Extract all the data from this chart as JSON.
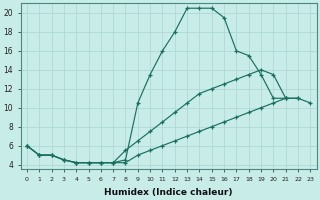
{
  "xlabel": "Humidex (Indice chaleur)",
  "bg_color": "#c8ece8",
  "grid_color": "#aad4d0",
  "line_color": "#1a7060",
  "xmin": -0.5,
  "xmax": 23.5,
  "ymin": 3.5,
  "ymax": 21.0,
  "yticks": [
    4,
    6,
    8,
    10,
    12,
    14,
    16,
    18,
    20
  ],
  "xticks": [
    0,
    1,
    2,
    3,
    4,
    5,
    6,
    7,
    8,
    9,
    10,
    11,
    12,
    13,
    14,
    15,
    16,
    17,
    18,
    19,
    20,
    21,
    22,
    23
  ],
  "line1_x": [
    0,
    1,
    2,
    3,
    4,
    5,
    6,
    7,
    8,
    9,
    10,
    11,
    12,
    13,
    14,
    15,
    16,
    17,
    18,
    19,
    20,
    21
  ],
  "line1_y": [
    6,
    5,
    5,
    4.5,
    4.2,
    4.2,
    4.2,
    4.2,
    4.5,
    10.5,
    13.5,
    16,
    18,
    20.5,
    20.5,
    20.5,
    19.5,
    16,
    15.5,
    13.5,
    11,
    11
  ],
  "line2_x": [
    0,
    1,
    2,
    3,
    4,
    5,
    6,
    7,
    8,
    9,
    10,
    11,
    12,
    13,
    14,
    15,
    16,
    17,
    18,
    19,
    20,
    21,
    22
  ],
  "line2_y": [
    6,
    5,
    5,
    4.5,
    4.2,
    4.2,
    4.2,
    4.2,
    5.5,
    6.5,
    7.5,
    8.5,
    9.5,
    10.5,
    11.5,
    12,
    12.5,
    13,
    13.5,
    14,
    13.5,
    11,
    11
  ],
  "line3_x": [
    0,
    1,
    2,
    3,
    4,
    5,
    6,
    7,
    8,
    9,
    10,
    11,
    12,
    13,
    14,
    15,
    16,
    17,
    18,
    19,
    20,
    21,
    22,
    23
  ],
  "line3_y": [
    6,
    5,
    5,
    4.5,
    4.2,
    4.2,
    4.2,
    4.2,
    4.2,
    5,
    5.5,
    6,
    6.5,
    7,
    7.5,
    8,
    8.5,
    9,
    9.5,
    10,
    10.5,
    11,
    11,
    10.5
  ]
}
